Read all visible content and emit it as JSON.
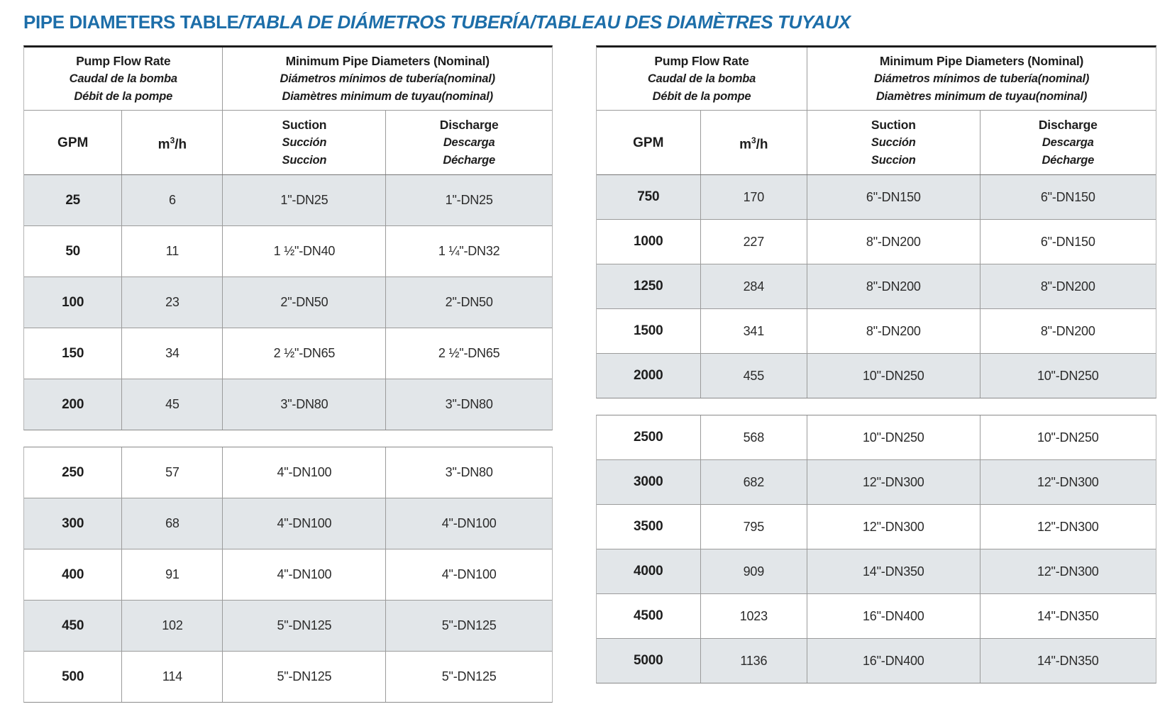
{
  "title": {
    "plain": "PIPE DIAMETERS TABLE",
    "italic": "/TABLA DE DIÁMETROS TUBERÍA/TABLEAU DES DIAMÈTRES TUYAUX"
  },
  "colors": {
    "title_blue": "#1d6ea9",
    "shaded_row": "#e2e6e9",
    "border_dark": "#1c1c1c",
    "border_gray": "#9b9b9b",
    "text_dark": "#1e1e1e"
  },
  "header": {
    "flow": [
      "Pump Flow Rate",
      "Caudal de la bomba",
      "Débit de la pompe"
    ],
    "diam": [
      "Minimum Pipe Diameters (Nominal)",
      "Diámetros mínimos de tubería(nominal)",
      "Diamètres minimum de tuyau(nominal)"
    ],
    "gpm": "GPM",
    "m3h": {
      "base": "m",
      "sup": "3",
      "rest": "/h"
    },
    "suction": [
      "Suction",
      "Succión",
      "Succion"
    ],
    "discharge": [
      "Discharge",
      "Descarga",
      "Décharge"
    ]
  },
  "tables": [
    {
      "blocks": [
        [
          {
            "gpm": "25",
            "m3h": "6",
            "suction": "1\"-DN25",
            "discharge": "1\"-DN25"
          },
          {
            "gpm": "50",
            "m3h": "11",
            "suction": "1 ½\"-DN40",
            "discharge": "1 ¼\"-DN32"
          },
          {
            "gpm": "100",
            "m3h": "23",
            "suction": "2\"-DN50",
            "discharge": "2\"-DN50"
          },
          {
            "gpm": "150",
            "m3h": "34",
            "suction": "2 ½\"-DN65",
            "discharge": "2 ½\"-DN65"
          },
          {
            "gpm": "200",
            "m3h": "45",
            "suction": "3\"-DN80",
            "discharge": "3\"-DN80"
          }
        ],
        [
          {
            "gpm": "250",
            "m3h": "57",
            "suction": "4\"-DN100",
            "discharge": "3\"-DN80"
          },
          {
            "gpm": "300",
            "m3h": "68",
            "suction": "4\"-DN100",
            "discharge": "4\"-DN100"
          },
          {
            "gpm": "400",
            "m3h": "91",
            "suction": "4\"-DN100",
            "discharge": "4\"-DN100"
          },
          {
            "gpm": "450",
            "m3h": "102",
            "suction": "5\"-DN125",
            "discharge": "5\"-DN125"
          },
          {
            "gpm": "500",
            "m3h": "114",
            "suction": "5\"-DN125",
            "discharge": "5\"-DN125"
          }
        ]
      ]
    },
    {
      "blocks": [
        [
          {
            "gpm": "750",
            "m3h": "170",
            "suction": "6\"-DN150",
            "discharge": "6\"-DN150"
          },
          {
            "gpm": "1000",
            "m3h": "227",
            "suction": "8\"-DN200",
            "discharge": "6\"-DN150"
          },
          {
            "gpm": "1250",
            "m3h": "284",
            "suction": "8\"-DN200",
            "discharge": "8\"-DN200"
          },
          {
            "gpm": "1500",
            "m3h": "341",
            "suction": "8\"-DN200",
            "discharge": "8\"-DN200"
          },
          {
            "gpm": "2000",
            "m3h": "455",
            "suction": "10\"-DN250",
            "discharge": "10\"-DN250"
          }
        ],
        [
          {
            "gpm": "2500",
            "m3h": "568",
            "suction": "10\"-DN250",
            "discharge": "10\"-DN250"
          },
          {
            "gpm": "3000",
            "m3h": "682",
            "suction": "12\"-DN300",
            "discharge": "12\"-DN300"
          },
          {
            "gpm": "3500",
            "m3h": "795",
            "suction": "12\"-DN300",
            "discharge": "12\"-DN300"
          },
          {
            "gpm": "4000",
            "m3h": "909",
            "suction": "14\"-DN350",
            "discharge": "12\"-DN300"
          },
          {
            "gpm": "4500",
            "m3h": "1023",
            "suction": "16\"-DN400",
            "discharge": "14\"-DN350"
          },
          {
            "gpm": "5000",
            "m3h": "1136",
            "suction": "16\"-DN400",
            "discharge": "14\"-DN350"
          }
        ]
      ]
    }
  ]
}
